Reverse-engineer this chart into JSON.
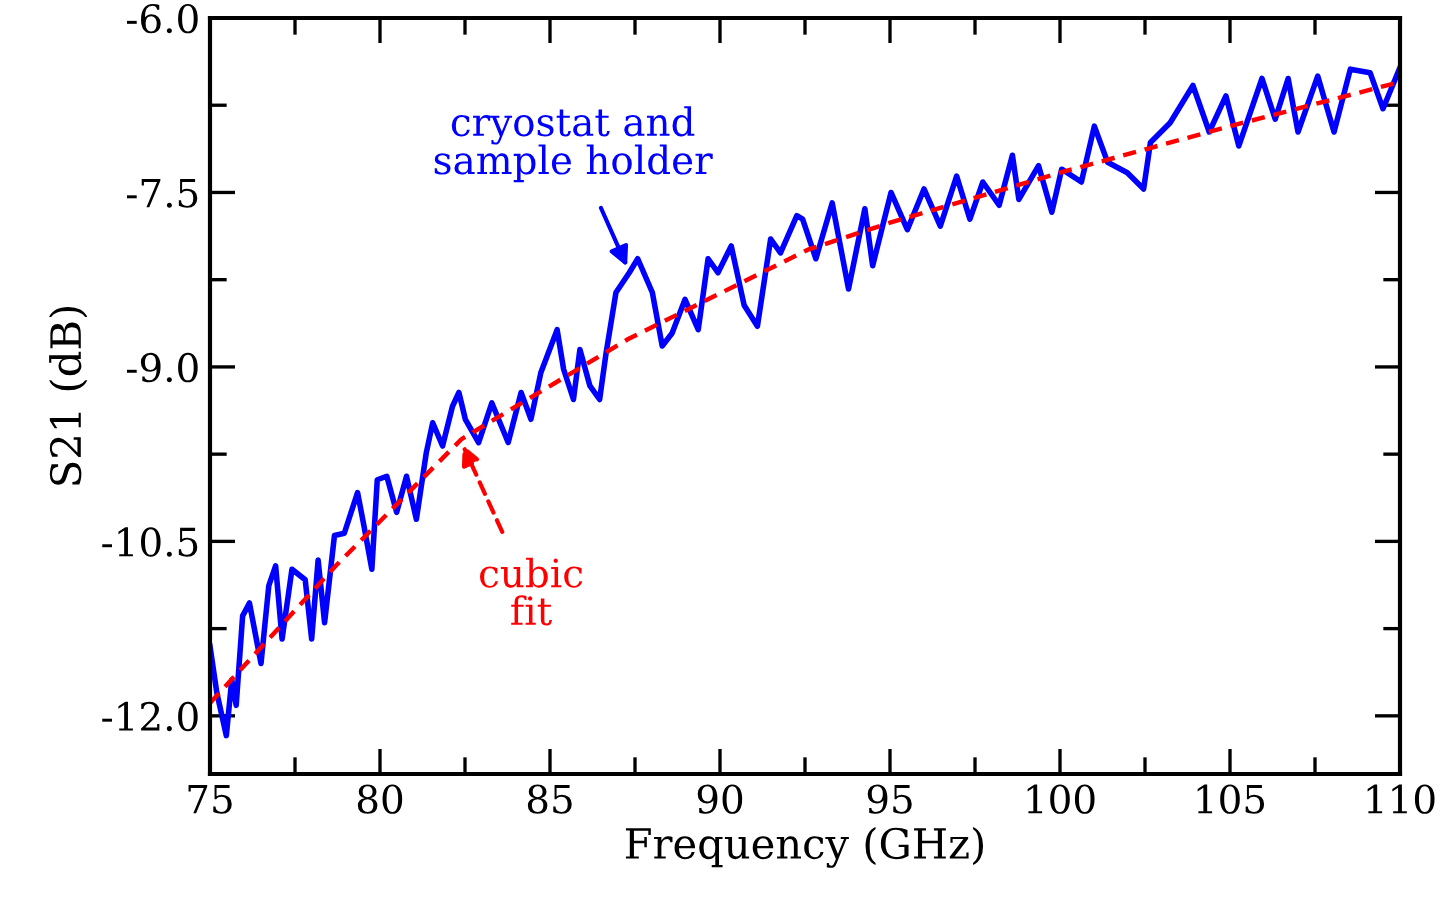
{
  "chart_data": {
    "type": "line",
    "xlabel": "Frequency (GHz)",
    "ylabel": "S21 (dB)",
    "xlim": [
      75,
      110
    ],
    "ylim": [
      -12.5,
      -6.0
    ],
    "xticks": [
      75,
      {
        "value": 77.5,
        "label": null
      },
      80,
      {
        "value": 82.5,
        "label": null
      },
      85,
      {
        "value": 87.5,
        "label": null
      },
      90,
      {
        "value": 92.5,
        "label": null
      },
      95,
      {
        "value": 97.5,
        "label": null
      },
      100,
      {
        "value": 102.5,
        "label": null
      },
      105,
      {
        "value": 107.5,
        "label": null
      },
      110
    ],
    "yticks": [
      {
        "value": -12.0,
        "label": "-12.0"
      },
      {
        "value": -11.25,
        "label": null
      },
      {
        "value": -10.5,
        "label": "-10.5"
      },
      {
        "value": -9.75,
        "label": null
      },
      {
        "value": -9.0,
        "label": "-9.0"
      },
      {
        "value": -8.25,
        "label": null
      },
      {
        "value": -7.5,
        "label": "-7.5"
      },
      {
        "value": -6.75,
        "label": null
      },
      {
        "value": -6.0,
        "label": "-6.0"
      }
    ],
    "grid": false,
    "series": [
      {
        "color": "#0000ff",
        "line_style": "solid",
        "x": [
          75.0,
          75.2,
          75.48,
          75.64,
          75.77,
          75.96,
          76.16,
          76.5,
          76.73,
          76.93,
          77.12,
          77.41,
          77.8,
          77.99,
          78.18,
          78.37,
          78.66,
          78.95,
          79.34,
          79.53,
          79.76,
          79.92,
          80.2,
          80.49,
          80.78,
          81.07,
          81.36,
          81.55,
          81.84,
          82.13,
          82.32,
          82.51,
          82.9,
          83.29,
          83.77,
          84.15,
          84.44,
          84.73,
          85.21,
          85.4,
          85.69,
          85.88,
          86.17,
          86.46,
          86.65,
          86.94,
          87.33,
          87.58,
          88.01,
          88.3,
          88.59,
          88.97,
          89.36,
          89.65,
          89.94,
          90.33,
          90.71,
          91.1,
          91.49,
          91.78,
          92.26,
          92.43,
          92.82,
          93.3,
          93.78,
          94.26,
          94.49,
          95.03,
          95.51,
          96.0,
          96.48,
          96.96,
          97.35,
          97.73,
          98.21,
          98.6,
          98.79,
          99.37,
          99.76,
          100.05,
          100.63,
          101.01,
          101.4,
          101.98,
          102.46,
          102.66,
          103.24,
          103.91,
          104.39,
          104.88,
          105.26,
          105.94,
          106.33,
          106.71,
          107.0,
          107.58,
          108.06,
          108.54,
          109.12,
          109.5,
          109.98
        ],
        "values": [
          -11.4,
          -11.8,
          -12.17,
          -11.69,
          -11.91,
          -11.14,
          -11.03,
          -11.55,
          -10.88,
          -10.71,
          -11.34,
          -10.74,
          -10.83,
          -11.34,
          -10.66,
          -11.2,
          -10.45,
          -10.43,
          -10.08,
          -10.37,
          -10.74,
          -9.97,
          -9.94,
          -10.25,
          -9.94,
          -10.31,
          -9.74,
          -9.48,
          -9.68,
          -9.34,
          -9.22,
          -9.45,
          -9.65,
          -9.31,
          -9.65,
          -9.22,
          -9.45,
          -9.05,
          -8.68,
          -9.02,
          -9.28,
          -8.85,
          -9.16,
          -9.28,
          -8.88,
          -8.36,
          -8.19,
          -8.07,
          -8.36,
          -8.82,
          -8.71,
          -8.42,
          -8.68,
          -8.07,
          -8.19,
          -7.96,
          -8.47,
          -8.65,
          -7.9,
          -8.02,
          -7.7,
          -7.73,
          -8.07,
          -7.59,
          -8.33,
          -7.64,
          -8.13,
          -7.5,
          -7.82,
          -7.47,
          -7.79,
          -7.36,
          -7.73,
          -7.41,
          -7.61,
          -7.18,
          -7.56,
          -7.27,
          -7.67,
          -7.3,
          -7.41,
          -6.93,
          -7.24,
          -7.33,
          -7.47,
          -7.07,
          -6.9,
          -6.58,
          -6.98,
          -6.67,
          -7.1,
          -6.52,
          -6.87,
          -6.52,
          -6.98,
          -6.5,
          -6.98,
          -6.44,
          -6.47,
          -6.78,
          -6.44
        ]
      },
      {
        "color": "#ff0000",
        "line_style": "dashed",
        "x": [
          75.0,
          78.7,
          82.4,
          87.3,
          92.6,
          95.0,
          100.0,
          105.0,
          110.0
        ],
        "values": [
          -11.89,
          -10.71,
          -9.62,
          -8.76,
          -7.99,
          -7.76,
          -7.33,
          -6.93,
          -6.55
        ]
      }
    ],
    "annotations": [
      {
        "text": "cryostat and\nsample holder",
        "x": 87.3,
        "y": -8.16
      },
      {
        "text": "cubic\nfit",
        "x": 82.4,
        "y": -9.65
      }
    ]
  }
}
